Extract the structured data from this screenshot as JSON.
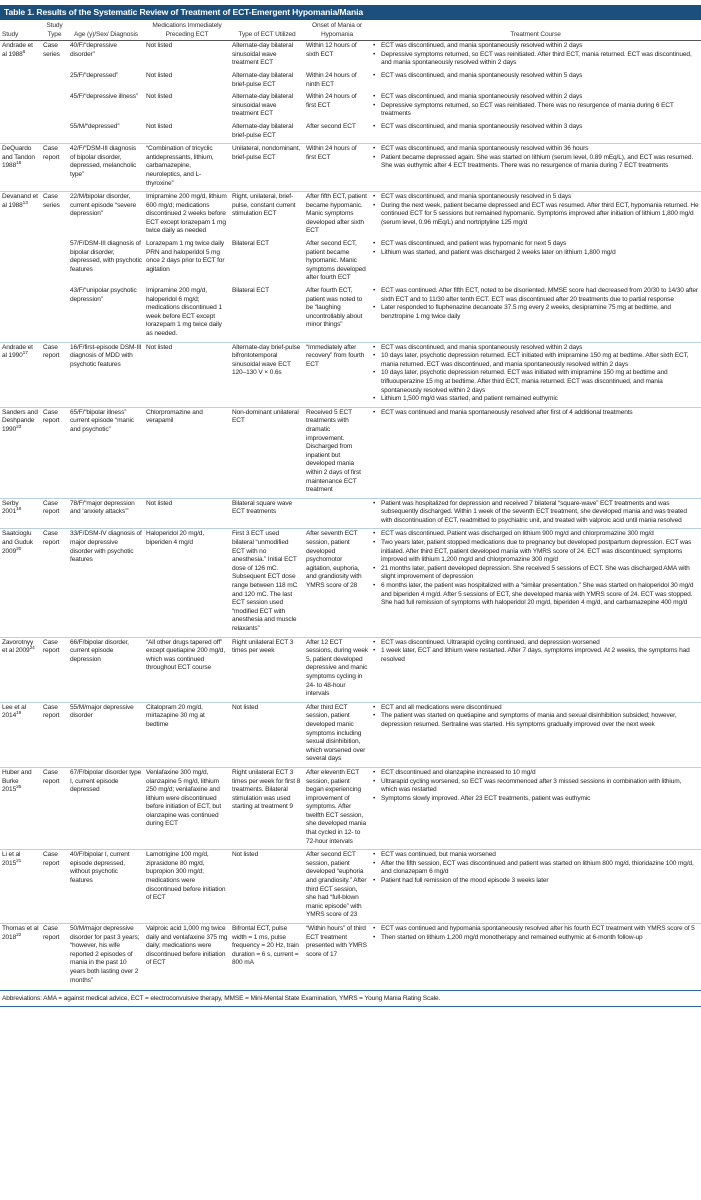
{
  "title": "Table 1. Results of the Systematic Review of Treatment of ECT-Emergent Hypomania/Mania",
  "colors": {
    "title_bar": "#1d4f7c",
    "row_divider": "#b9cfe2"
  },
  "headers": [
    "Study",
    "Study Type",
    "Age (y)/Sex/ Diagnosis",
    "Medications Immediately Preceding ECT",
    "Type of ECT Utilized",
    "Onset of Mania or Hypomania",
    "Treatment Course"
  ],
  "studies": [
    {
      "name": "Andrade et al 1988",
      "ref": "6",
      "type": "Case series",
      "cases": [
        {
          "age": "40/F/“depressive disorder”",
          "meds": "Not listed",
          "ect": "Alternate-day bilateral sinusoidal wave treatment ECT",
          "onset": "Within 12 hours of sixth ECT",
          "course": [
            "ECT was discontinued, and mania spontaneously resolved within 2 days",
            "Depressive symptoms returned, so ECT was reinitiated. After third ECT, mania returned. ECT was discontinued, and mania spontaneously resolved within 2 days"
          ]
        },
        {
          "age": "25/F/“depressed”",
          "meds": "Not listed",
          "ect": "Alternate-day bilateral brief-pulse ECT",
          "onset": "Within 24 hours of ninth ECT",
          "course": [
            "ECT was discontinued, and mania spontaneously resolved within 5 days"
          ]
        },
        {
          "age": "45/F/“depressive illness”",
          "meds": "Not listed",
          "ect": "Alternate-day bilateral sinusoidal wave treatment ECT",
          "onset": "Within 24 hours of first ECT",
          "course": [
            "ECT was discontinued, and mania spontaneously resolved within 2 days",
            "Depressive symptoms returned, so ECT was reinitiated. There was no resurgence of mania during 6 ECT treatments"
          ]
        },
        {
          "age": "55/M/“depressed”",
          "meds": "Not listed",
          "ect": "Alternate-day bilateral brief-pulse ECT",
          "onset": "After second ECT",
          "course": [
            "ECT was discontinued, and mania spontaneously resolved within 3 days"
          ]
        }
      ]
    },
    {
      "name": "DeQuardo and Tandon 1988",
      "ref": "18",
      "type": "Case report",
      "cases": [
        {
          "age": "42/F/“DSM-III diagnosis of bipolar disorder, depressed, melancholic type”",
          "meds": "“Combination of tricyclic antidepressants, lithium, carbamazepine, neuroleptics, and L-thyroxine”",
          "ect": "Unilateral, nondominant, brief-pulse ECT",
          "onset": "Within 24 hours of first ECT",
          "course": [
            "ECT was discontinued, and mania spontaneously resolved within 36 hours",
            "Patient became depressed again. She was started on lithium (serum level, 0.89 mEq/L), and ECT was resumed. She was euthymic after 4 ECT treatments. There was no resurgence of mania during 7 ECT treatments"
          ]
        }
      ]
    },
    {
      "name": "Devanand et al 1988",
      "ref": "13",
      "type": "Case series",
      "cases": [
        {
          "age": "22/M/bipolar disorder, current episode “severe depression”",
          "meds": "Imipramine 200 mg/d, lithium 600 mg/d; medications discontinued 2 weeks before ECT except lorazepam 1 mg twice daily as needed",
          "ect": "Right, unilateral, brief-pulse, constant current stimulation ECT",
          "onset": "After fifth ECT, patient became hypomanic. Manic symptoms developed after sixth ECT",
          "course": [
            "ECT was discontinued, and mania spontaneously resolved in 5 days",
            "During the next week, patient became depressed and ECT was resumed. After third ECT, hypomania returned. He continued ECT for 5 sessions but remained hypomanic. Symptoms improved after initiation of lithium 1,800 mg/d (serum level, 0.96 mEq/L) and nortriptyline 125 mg/d"
          ]
        },
        {
          "age": "57/F/DSM-III diagnosis of bipolar disorder, depressed, with psychotic features",
          "meds": "Lorazepam 1 mg twice daily PRN and haloperidol 5 mg once 2 days prior to ECT for agitation",
          "ect": "Bilateral ECT",
          "onset": "After second ECT, patient became hypomanic. Manic symptoms developed after fourth ECT",
          "course": [
            "ECT was discontinued, and patient was hypomanic for next 5 days",
            "Lithium was started, and patient was discharged 2 weeks later on lithium 1,800 mg/d"
          ]
        },
        {
          "age": "43/F/“unipolar psychotic depression”",
          "meds": "Imipramine 200 mg/d, haloperidol 6 mg/d; medications discontinued 1 week before ECT except lorazepam 1 mg twice daily as needed.",
          "ect": "Bilateral ECT",
          "onset": "After fourth ECT, patient was noted to be “laughing uncontrollably about minor things”",
          "course": [
            "ECT was continued. After fifth ECT, noted to be disoriented. MMSE score had decreased from 20/30 to 14/30 after sixth ECT and to 11/30 after tenth ECT. ECT was discontinued after 20 treatments due to partial response",
            "Later responded to fluphenazine decanoate 37.5 mg every 2 weeks, desipramine 75 mg at bedtime, and benztropine 1 mg twice daily"
          ]
        }
      ]
    },
    {
      "name": "Andrade et al 1990",
      "ref": "17",
      "type": "Case report",
      "cases": [
        {
          "age": "16/F/first-episode DSM-III diagnosis of MDD with psychotic features",
          "meds": "Not listed",
          "ect": "Alternate-day brief-pulse bifrontotemporal sinusoidal wave ECT 120–130 V × 0.6s",
          "onset": "“Immediately after recovery” from fourth ECT",
          "course": [
            "ECT was discontinued, and mania spontaneously resolved within 2 days",
            "10 days later, psychotic depression returned. ECT initiated with imipramine 150 mg at bedtime. After sixth ECT, mania returned. ECT was discontinued, and mania spontaneously resolved within 2 days",
            "10 days later, psychotic depression returned. ECT was initiated with imipramine 150 mg at bedtime and trifluouperazine 15 mg at bedtime. After third ECT, mania returned. ECT was discontinued, and mania spontaneously resolved within 2 days",
            "Lithium 1,500 mg/d was started, and patient remained euthymic"
          ]
        }
      ]
    },
    {
      "name": "Sanders and Deshpande 1990",
      "ref": "23",
      "type": "Case report",
      "cases": [
        {
          "age": "65/F/“bipolar illness” current episode “manic and psychotic”",
          "meds": "Chlorpromazine and verapamil",
          "ect": "Non-dominant unilateral ECT",
          "onset": "Received 5 ECT treatments with dramatic improvement. Discharged from inpatient but developed mania within 2 days of first maintenance ECT treatment",
          "course": [
            "ECT was continued and mania spontaneously resolved after first of 4 additional treatments"
          ]
        }
      ]
    },
    {
      "name": "Serby 2001",
      "ref": "16",
      "type": "Case report",
      "cases": [
        {
          "age": "78/F/“major depression and ‘anxiety attacks’”",
          "meds": "Not listed",
          "ect": "Bilateral square wave ECT treatments",
          "onset": "",
          "course": [
            "Patient was hospitalized for depression and received 7 bilateral “square-wave” ECT treatments and was subsequently discharged. Within 1 week of the seventh ECT treatment, she developed mania and was treated with discontinuation of ECT, readmitted to psychiatric unit, and treated with valproic acid until mania resolved"
          ]
        }
      ]
    },
    {
      "name": "Saatcioglu and Guduk 2009",
      "ref": "20",
      "type": "Case report",
      "cases": [
        {
          "age": "33/F/DSM-IV diagnosis of major depressive disorder with psychotic features",
          "meds": "Haloperidol 20 mg/d, biperiden 4 mg/d",
          "ect": "First 3 ECT used bilateral “unmodified ECT with no anesthesia.” Initial ECT dose of 126 mC. Subsequent ECT dose range between 118 mC and 120 mC. The last ECT session used “modified ECT with anesthesia and muscle relaxants”",
          "onset": "After seventh ECT session, patient developed psychomotor agitation, euphoria, and grandiosity with YMRS score of 28",
          "course": [
            "ECT was discontinued. Patient was discharged on lithium 900 mg/d and chlorpromazine 300 mg/d",
            "Two years later, patient stopped medications due to pregnancy but developed postpartum depression. ECT was initiated. After third ECT, patient developed mania with YMRS score of 24. ECT was discontinued; symptoms improved with lithium 1,200 mg/d and chlorpromazine 300 mg/d",
            "21 months later, patient developed depression. She received 5 sessions of ECT. She was discharged AMA with slight improvement of depression",
            "6 months later, the patient was hospitalized with a “similar presentation.” She was started on haloperidol 30 mg/d and biperiden 4 mg/d. After 5 sessions of ECT, she developed mania with YMRS score of 24. ECT was stopped. She had full remission of symptoms with haloperidol 20 mg/d, biperiden 4 mg/d, and carbamazepine 400 mg/d"
          ]
        }
      ]
    },
    {
      "name": "Zavorotnyy et al 2009",
      "ref": "24",
      "type": "Case report",
      "cases": [
        {
          "age": "66/F/bipolar disorder, current episode depression",
          "meds": "“All other drugs tapered off” except quetiapine 200 mg/d, which was continued throughout ECT course",
          "ect": "Right unilateral ECT 3 times per week",
          "onset": "After 12 ECT sessions, during week 5, patient developed depressive and manic symptoms cycling in 24- to 48-hour intervals",
          "course": [
            "ECT was discontinued. Ultrarapid cycling continued, and depression worsened",
            "1 week later, ECT and lithium were restarted. After 7 days, symptoms improved. At 2 weeks, the symptoms had resolved"
          ]
        }
      ]
    },
    {
      "name": "Lee et al 2014",
      "ref": "19",
      "type": "Case report",
      "cases": [
        {
          "age": "55/M/major depressive disorder",
          "meds": "Citalopram 20 mg/d, mirtazapine 30 mg at bedtime",
          "ect": "Not listed",
          "onset": "After third ECT session, patient developed manic symptoms including sexual disinhibition, which worsened over several days",
          "course": [
            "ECT and all medications were discontinued",
            "The patient was started on quetiapine and symptoms of mania and sexual disinhibition subsided; however, depression resumed. Sertraline was started. His symptoms gradually improved over the next week"
          ]
        }
      ]
    },
    {
      "name": "Huber and Burke 2015",
      "ref": "25",
      "type": "Case report",
      "cases": [
        {
          "age": "67/F/bipolar disorder type I, current episode depressed",
          "meds": "Venlafaxine 300 mg/d, olanzapine 5 mg/d, lithium 250 mg/d; venlafaxine and lithium were discontinued before initiation of ECT, but olanzapine was continued during ECT",
          "ect": "Right unilateral ECT 3 times per week for first 8 treatments. Bilateral stimulation was used starting at treatment 9",
          "onset": "After eleventh ECT session, patient began experiencing improvement of symptoms. After twelfth ECT session, she developed mania that cycled in 12- to 72-hour intervals",
          "course": [
            "ECT discontinued and olanzapine increased to 10 mg/d",
            "Ultrarapid cycling worsened, so ECT was recommenced after 3 missed sessions in combination with lithium, which was restarted",
            "Symptoms slowly improved. After 23 ECT treatments, patient was euthymic"
          ]
        }
      ]
    },
    {
      "name": "Li et al 2015",
      "ref": "21",
      "type": "Case report",
      "cases": [
        {
          "age": "40/F/bipolar I, current episode depressed, without psychotic features",
          "meds": "Lamotrigine 100 mg/d, ziprasidone 80 mg/d, bupropion 300 mg/d; medications were discontinued before initiation of ECT",
          "ect": "Not listed",
          "onset": "After second ECT session, patient developed “euphoria and grandiosity.” After third ECT session, she had “full-blown manic episode” with YMRS score of 23",
          "course": [
            "ECT was continued, but mania worsened",
            "After the fifth session, ECT was discontinued and patient was started on lithium 800 mg/d, thioridazine 100 mg/d, and clonazepam 6 mg/d",
            "Patient had full remission of the mood episode 3 weeks later"
          ]
        }
      ]
    },
    {
      "name": "Thomas et al 2018",
      "ref": "22",
      "type": "Case report",
      "cases": [
        {
          "age": "50/M/major depressive disorder for past 3 years; “however, his wife reported 2 episodes of mania in the past 10 years both lasting over 2 months”",
          "meds": "Valproic acid 1,000 mg twice daily and venlafaxine 375 mg daily; medications were discontinued before initiation of ECT",
          "ect": "Bifrontal ECT, pulse width = 1 ms, pulse frequency = 20 Hz, train duration = 6 s, current = 800 mA",
          "onset": "“Within hours” of third ECT treatment presented with YMRS score of 17",
          "course": [
            "ECT was continued and hypomania spontaneously resolved after his fourth ECT treatment with YMRS score of 5",
            "Then started on lithium 1,200 mg/d monotherapy and remained euthymic at 6-month follow-up"
          ]
        }
      ]
    }
  ],
  "footnote": "Abbreviations: AMA = against medical advice, ECT = electroconvulsive therapy, MMSE = Mini-Mental State Examination, YMRS = Young Mania Rating Scale."
}
